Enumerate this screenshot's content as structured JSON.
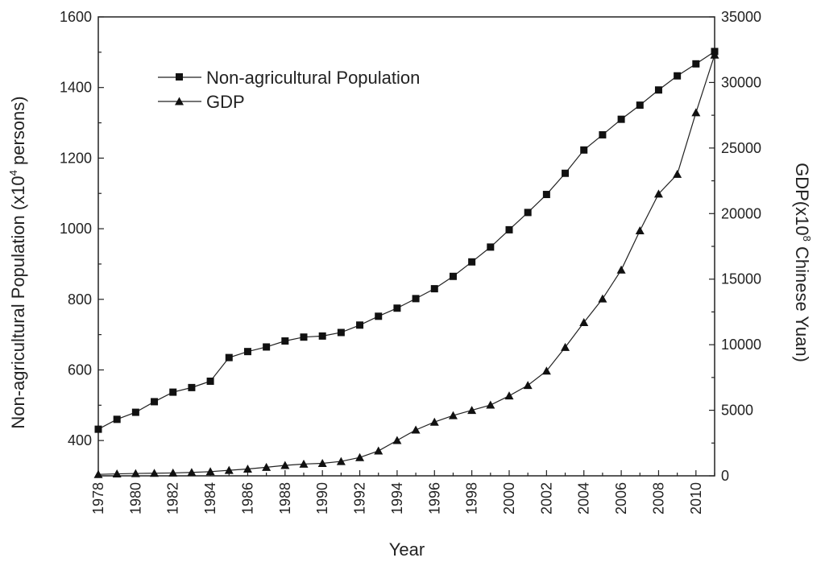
{
  "chart_data": {
    "type": "line",
    "title": "",
    "xlabel": "Year",
    "ylabel_left": {
      "pre": "Non-agricultural Population (x10",
      "sup": "4",
      "post": " persons)"
    },
    "ylabel_right": {
      "pre": "GDP(x10",
      "sup": "8",
      "post": " Chinese Yuan)"
    },
    "xlim": [
      1978,
      2011
    ],
    "ylim_left": [
      300,
      1600
    ],
    "ylim_right": [
      0,
      35000
    ],
    "x_ticks": [
      "1978",
      "1980",
      "1982",
      "1984",
      "1986",
      "1988",
      "1990",
      "1992",
      "1994",
      "1996",
      "1998",
      "2000",
      "2002",
      "2004",
      "2006",
      "2008",
      "2010"
    ],
    "y_ticks_left": [
      "400",
      "600",
      "800",
      "1000",
      "1200",
      "1400",
      "1600"
    ],
    "y_ticks_right": [
      "0",
      "5000",
      "10000",
      "15000",
      "20000",
      "25000",
      "30000",
      "35000"
    ],
    "grid": false,
    "legend_position": "top-left",
    "series": [
      {
        "name": "Non-agricultural Population",
        "axis": "left",
        "marker": "square",
        "x": [
          1978,
          1979,
          1980,
          1981,
          1982,
          1983,
          1984,
          1985,
          1986,
          1987,
          1988,
          1989,
          1990,
          1991,
          1992,
          1993,
          1994,
          1995,
          1996,
          1997,
          1998,
          1999,
          2000,
          2001,
          2002,
          2003,
          2004,
          2005,
          2006,
          2007,
          2008,
          2009,
          2010,
          2011
        ],
        "values": [
          432,
          460,
          480,
          510,
          537,
          550,
          568,
          635,
          652,
          665,
          682,
          693,
          696,
          706,
          727,
          752,
          775,
          802,
          830,
          865,
          906,
          948,
          997,
          1046,
          1097,
          1157,
          1223,
          1266,
          1310,
          1350,
          1393,
          1433,
          1467,
          1502
        ]
      },
      {
        "name": "GDP",
        "axis": "right",
        "marker": "triangle",
        "x": [
          1978,
          1979,
          1980,
          1981,
          1982,
          1983,
          1984,
          1985,
          1986,
          1987,
          1988,
          1989,
          1990,
          1991,
          1992,
          1993,
          1994,
          1995,
          1996,
          1997,
          1998,
          1999,
          2000,
          2001,
          2002,
          2003,
          2004,
          2005,
          2006,
          2007,
          2008,
          2009,
          2010,
          2011
        ],
        "values": [
          110,
          150,
          180,
          200,
          220,
          260,
          320,
          420,
          520,
          650,
          800,
          900,
          950,
          1100,
          1400,
          1900,
          2700,
          3500,
          4100,
          4600,
          5000,
          5400,
          6100,
          6900,
          8000,
          9800,
          11700,
          13500,
          15700,
          18700,
          21500,
          23000,
          27700,
          32100
        ]
      }
    ]
  }
}
